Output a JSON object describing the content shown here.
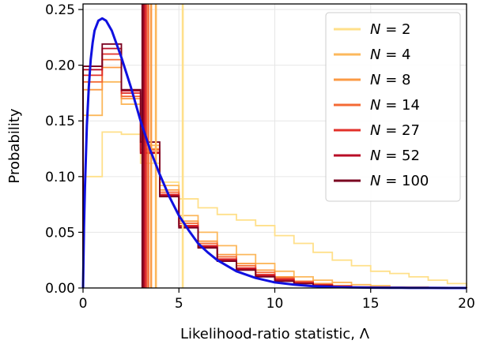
{
  "chart_data": {
    "type": "line",
    "xlabel": "Likelihood-ratio statistic, Λ",
    "ylabel": "Probability",
    "xlim": [
      0,
      20
    ],
    "ylim": [
      0,
      0.255
    ],
    "xticks": [
      0,
      5,
      10,
      15,
      20
    ],
    "xtick_labels": [
      "0",
      "5",
      "10",
      "15",
      "20"
    ],
    "yticks": [
      0.0,
      0.05,
      0.1,
      0.15,
      0.2,
      0.25
    ],
    "ytick_labels": [
      "0.00",
      "0.05",
      "0.10",
      "0.15",
      "0.20",
      "0.25"
    ],
    "grid": true,
    "legend_placement": "top-right",
    "bin_edges": [
      0,
      1,
      2,
      3,
      4,
      5,
      6,
      7,
      8,
      9,
      10,
      11,
      12,
      13,
      14,
      15,
      16,
      17,
      18,
      19,
      20
    ],
    "histograms": [
      {
        "name": "N = 2",
        "var": "N",
        "value": "2",
        "color": "#ffe08a",
        "vline_x": 5.2,
        "values": [
          0.1,
          0.14,
          0.138,
          0.112,
          0.095,
          0.08,
          0.072,
          0.066,
          0.061,
          0.056,
          0.047,
          0.04,
          0.032,
          0.025,
          0.02,
          0.015,
          0.013,
          0.01,
          0.007,
          0.004
        ]
      },
      {
        "name": "N = 4",
        "var": "N",
        "value": "4",
        "color": "#fcb85c",
        "vline_x": 3.8,
        "values": [
          0.155,
          0.185,
          0.165,
          0.128,
          0.092,
          0.065,
          0.05,
          0.038,
          0.03,
          0.022,
          0.015,
          0.01,
          0.007,
          0.005,
          0.003,
          0.002,
          0.001,
          0.001,
          0.0005,
          0.0003
        ]
      },
      {
        "name": "N = 8",
        "var": "N",
        "value": "8",
        "color": "#fb9a44",
        "vline_x": 3.55,
        "values": [
          0.178,
          0.198,
          0.17,
          0.125,
          0.088,
          0.06,
          0.042,
          0.03,
          0.022,
          0.016,
          0.01,
          0.006,
          0.004,
          0.002,
          0.001,
          0.001,
          0.0005,
          0.0003,
          0.0002,
          0.0001
        ]
      },
      {
        "name": "N = 14",
        "var": "N",
        "value": "14",
        "color": "#f46a34",
        "vline_x": 3.4,
        "values": [
          0.185,
          0.205,
          0.172,
          0.124,
          0.086,
          0.058,
          0.04,
          0.028,
          0.02,
          0.014,
          0.009,
          0.006,
          0.003,
          0.002,
          0.001,
          0.0005,
          0.0003,
          0.0002,
          0.0001,
          0.0001
        ]
      },
      {
        "name": "N = 27",
        "var": "N",
        "value": "27",
        "color": "#e2302a",
        "vline_x": 3.28,
        "values": [
          0.191,
          0.21,
          0.175,
          0.122,
          0.084,
          0.056,
          0.038,
          0.026,
          0.018,
          0.012,
          0.008,
          0.005,
          0.003,
          0.0015,
          0.0008,
          0.0004,
          0.0002,
          0.0001,
          0.0001,
          0.0001
        ]
      },
      {
        "name": "N = 52",
        "var": "N",
        "value": "52",
        "color": "#b80d26",
        "vline_x": 3.18,
        "values": [
          0.196,
          0.215,
          0.177,
          0.121,
          0.083,
          0.055,
          0.037,
          0.025,
          0.017,
          0.011,
          0.007,
          0.004,
          0.002,
          0.001,
          0.0006,
          0.0003,
          0.0002,
          0.0001,
          0.0001,
          0.0001
        ]
      },
      {
        "name": "N = 100",
        "var": "N",
        "value": "100",
        "color": "#7a0020",
        "vline_x": 3.1,
        "values": [
          0.199,
          0.219,
          0.178,
          0.131,
          0.082,
          0.054,
          0.036,
          0.024,
          0.016,
          0.01,
          0.006,
          0.004,
          0.002,
          0.001,
          0.0005,
          0.0003,
          0.0002,
          0.0001,
          0.0001,
          0.0001
        ]
      }
    ],
    "reference_curve": {
      "color": "#1010e0",
      "x": [
        0,
        0.05,
        0.1,
        0.2,
        0.3,
        0.4,
        0.5,
        0.6,
        0.8,
        1.0,
        1.2,
        1.5,
        2.0,
        2.5,
        3.0,
        3.5,
        4.0,
        4.5,
        5.0,
        5.5,
        6.0,
        6.5,
        7.0,
        8.0,
        9.0,
        10.0,
        11.0,
        12.0,
        13.0,
        14.0,
        15.0,
        16.0,
        17.0,
        18.0,
        19.0,
        20.0
      ],
      "y": [
        0.0,
        0.054,
        0.09,
        0.146,
        0.18,
        0.205,
        0.22,
        0.231,
        0.24,
        0.242,
        0.24,
        0.231,
        0.207,
        0.18,
        0.15,
        0.124,
        0.102,
        0.082,
        0.065,
        0.052,
        0.04,
        0.032,
        0.025,
        0.015,
        0.009,
        0.005,
        0.003,
        0.0016,
        0.0009,
        0.0005,
        0.0003,
        0.0002,
        0.0001,
        0.0001,
        0.0,
        0.0
      ]
    }
  }
}
